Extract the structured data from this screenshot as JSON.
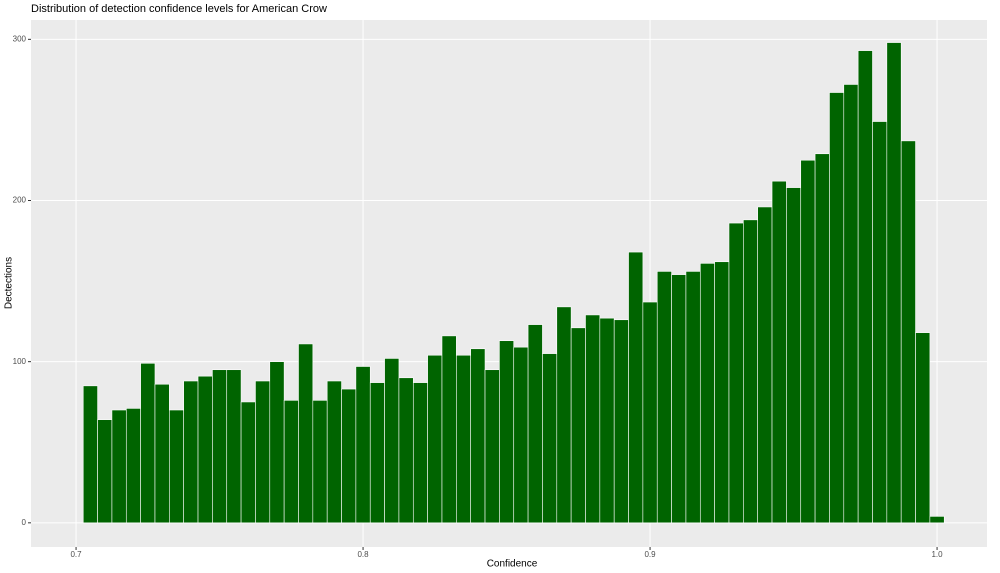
{
  "chart_data": {
    "type": "histogram",
    "title": "Distribution of detection confidence levels for American Crow",
    "x_label": "Confidence",
    "y_label": "Dectections",
    "color": "#006400",
    "bins": [
      0.7025,
      0.7075,
      0.7125,
      0.7175,
      0.7225,
      0.7275,
      0.7325,
      0.7375,
      0.7425,
      0.7475,
      0.7525,
      0.7575,
      0.7625,
      0.7675,
      0.7725,
      0.7775,
      0.7825,
      0.7875,
      0.7925,
      0.7975,
      0.8025,
      0.8075,
      0.8125,
      0.8175,
      0.8225,
      0.8275,
      0.8325,
      0.8375,
      0.8425,
      0.8475,
      0.8525,
      0.8575,
      0.8625,
      0.8675,
      0.8725,
      0.8775,
      0.8825,
      0.8875,
      0.8925,
      0.8975,
      0.9025,
      0.9075,
      0.9125,
      0.9175,
      0.9225,
      0.9275,
      0.9325,
      0.9375,
      0.9425,
      0.9475,
      0.9525,
      0.9575,
      0.9625,
      0.9675,
      0.9725,
      0.9775,
      0.9825,
      0.9875,
      0.9925,
      0.9975,
      1.0025
    ],
    "values": [
      85,
      64,
      70,
      71,
      99,
      86,
      70,
      88,
      91,
      95,
      95,
      75,
      88,
      100,
      76,
      111,
      76,
      88,
      83,
      97,
      87,
      102,
      90,
      87,
      104,
      116,
      104,
      108,
      95,
      113,
      109,
      123,
      105,
      134,
      121,
      129,
      127,
      126,
      168,
      137,
      156,
      154,
      156,
      161,
      162,
      186,
      188,
      196,
      212,
      208,
      225,
      229,
      267,
      272,
      293,
      249,
      298,
      237,
      118,
      4
    ],
    "xlim": [
      0.6843,
      1.0174
    ],
    "xticks": [
      0.7,
      0.8,
      0.9,
      {
        "value": 1,
        "label": "1.0"
      }
    ],
    "ylim": [
      -15,
      312
    ],
    "yticks": [
      0,
      100,
      200,
      300
    ],
    "grid": true
  }
}
